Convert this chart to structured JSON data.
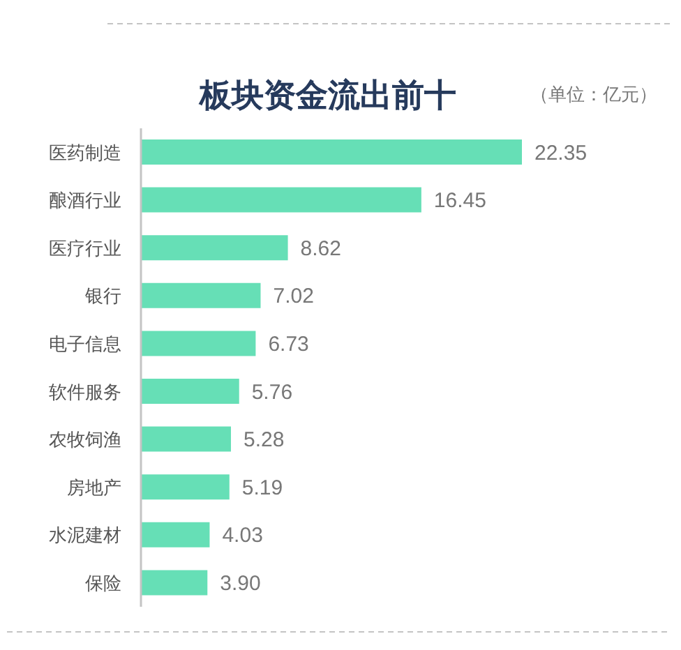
{
  "chart_data": {
    "type": "bar",
    "orientation": "horizontal",
    "title": "板块资金流出前十",
    "subtitle": "（单位：亿元）",
    "categories": [
      "医药制造",
      "酿酒行业",
      "医疗行业",
      "银行",
      "电子信息",
      "软件服务",
      "农牧饲渔",
      "房地产",
      "水泥建材",
      "保险"
    ],
    "values": [
      22.35,
      16.45,
      8.62,
      7.02,
      6.73,
      5.76,
      5.28,
      5.19,
      4.03,
      3.9
    ],
    "value_labels": [
      "22.35",
      "16.45",
      "8.62",
      "7.02",
      "6.73",
      "5.76",
      "5.28",
      "5.19",
      "4.03",
      "3.90"
    ],
    "color": "#66dfb6",
    "tick_labels": "y"
  }
}
